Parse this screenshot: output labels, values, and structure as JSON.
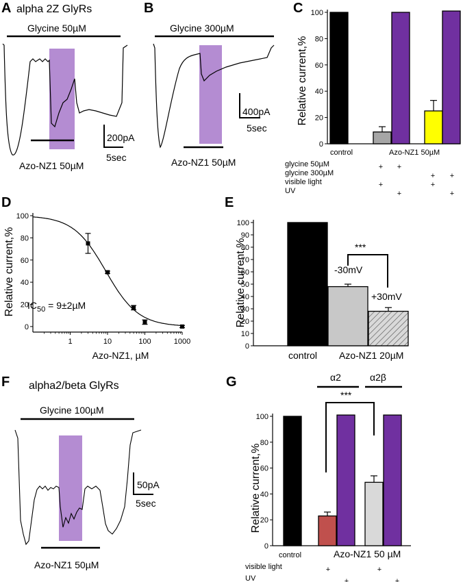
{
  "colors": {
    "black": "#000000",
    "gray": "#a6a6a6",
    "lightgray": "#c8c8c8",
    "purple": "#7030a0",
    "yellow": "#ffff00",
    "red": "#c0504d",
    "lightpurple": "#b48cd2",
    "hatch": "#d9d9d9"
  },
  "panels": {
    "A": {
      "label": "A",
      "title": "alpha 2Z GlyRs",
      "agonist_bar": "Glycine 50µM",
      "drug_bar": "Azo-NZ1 50µM",
      "scale_current": "200pA",
      "scale_time": "5sec"
    },
    "B": {
      "label": "B",
      "agonist_bar": "Glycine 300µM",
      "drug_bar": "Azo-NZ1 50µM",
      "scale_current": "400pA",
      "scale_time": "5sec"
    },
    "C": {
      "label": "C",
      "group_control": "control",
      "group_drug": "Azo-NZ1 50µM",
      "rows": [
        {
          "label": "glycine 50µM",
          "marks": [
            "+",
            "+",
            "",
            ""
          ]
        },
        {
          "label": "glycine 300µM",
          "marks": [
            "",
            "",
            "+",
            "+"
          ]
        },
        {
          "label": "visible light",
          "marks": [
            "+",
            "",
            "+",
            ""
          ]
        },
        {
          "label": "UV",
          "marks": [
            "",
            "+",
            "",
            "+"
          ]
        }
      ]
    },
    "D": {
      "label": "D",
      "annotation_main": "IC",
      "annotation_sub": "50",
      "annotation_rest": " = 9±2µM"
    },
    "E": {
      "label": "E",
      "bar_label_1": "-30mV",
      "bar_label_2": "+30mV",
      "significance": "***",
      "group_control": "control",
      "group_drug": "Azo-NZ1 20µM"
    },
    "F": {
      "label": "F",
      "title": "alpha2/beta GlyRs",
      "agonist_bar": "Glycine 100µM",
      "drug_bar": "Azo-NZ1 50µM",
      "scale_current": "50pA",
      "scale_time": "5sec"
    },
    "G": {
      "label": "G",
      "bracket_1": "α2",
      "bracket_2": "α2β",
      "significance": "***",
      "group_control": "control",
      "group_drug": "Azo-NZ1 50 µM",
      "rows": [
        {
          "label": "visible light",
          "marks": [
            "+",
            "",
            "+",
            ""
          ]
        },
        {
          "label": "UV",
          "marks": [
            "",
            "+",
            "",
            "+"
          ]
        }
      ]
    }
  },
  "chart_data": [
    {
      "panel": "C",
      "type": "bar",
      "ylabel": "Relative current,%",
      "ylim": [
        0,
        100
      ],
      "yticks": [
        0,
        20,
        40,
        60,
        80,
        100
      ],
      "categories": [
        "control",
        "glycine 50µM + visible light",
        "glycine 50µM + UV",
        "glycine 300µM + visible light",
        "glycine 300µM + UV"
      ],
      "values": [
        100,
        9,
        100,
        25,
        101
      ],
      "errors": [
        0,
        4,
        0,
        8,
        0
      ],
      "colors": [
        "#000000",
        "#a6a6a6",
        "#7030a0",
        "#ffff00",
        "#7030a0"
      ]
    },
    {
      "panel": "D",
      "type": "scatter",
      "xlabel": "Azo-NZ1, µM",
      "ylabel": "Relative current,%",
      "xscale": "log",
      "xlim": [
        0.1,
        1000
      ],
      "ylim": [
        -5,
        100
      ],
      "xticks": [
        1,
        10,
        100,
        1000
      ],
      "yticks": [
        0,
        20,
        40,
        60,
        80,
        100
      ],
      "x": [
        3,
        10,
        50,
        100,
        1000
      ],
      "y": [
        75,
        49,
        17,
        4,
        0
      ],
      "errors": [
        9,
        1,
        2,
        2,
        1
      ],
      "fit": {
        "model": "Hill",
        "ic50": 9,
        "hill": 1
      }
    },
    {
      "panel": "E",
      "type": "bar",
      "ylabel": "Relative current,%",
      "ylim": [
        0,
        100
      ],
      "yticks": [
        0,
        10,
        20,
        30,
        40,
        50,
        60,
        70,
        80,
        90,
        100
      ],
      "categories": [
        "control",
        "-30mV",
        "+30mV"
      ],
      "values": [
        100,
        48,
        28
      ],
      "errors": [
        0,
        2,
        3
      ],
      "colors": [
        "#000000",
        "#c8c8c8",
        "hatched"
      ]
    },
    {
      "panel": "G",
      "type": "bar",
      "ylabel": "Relative current,%",
      "ylim": [
        0,
        100
      ],
      "yticks": [
        0,
        20,
        40,
        60,
        80,
        100
      ],
      "categories": [
        "control",
        "α2 visible light",
        "α2 UV",
        "α2β visible light",
        "α2β UV"
      ],
      "values": [
        100,
        23,
        101,
        49,
        101
      ],
      "errors": [
        0,
        3,
        0,
        5,
        0
      ],
      "colors": [
        "#000000",
        "#c0504d",
        "#7030a0",
        "#d9d9d9",
        "#7030a0"
      ]
    }
  ]
}
